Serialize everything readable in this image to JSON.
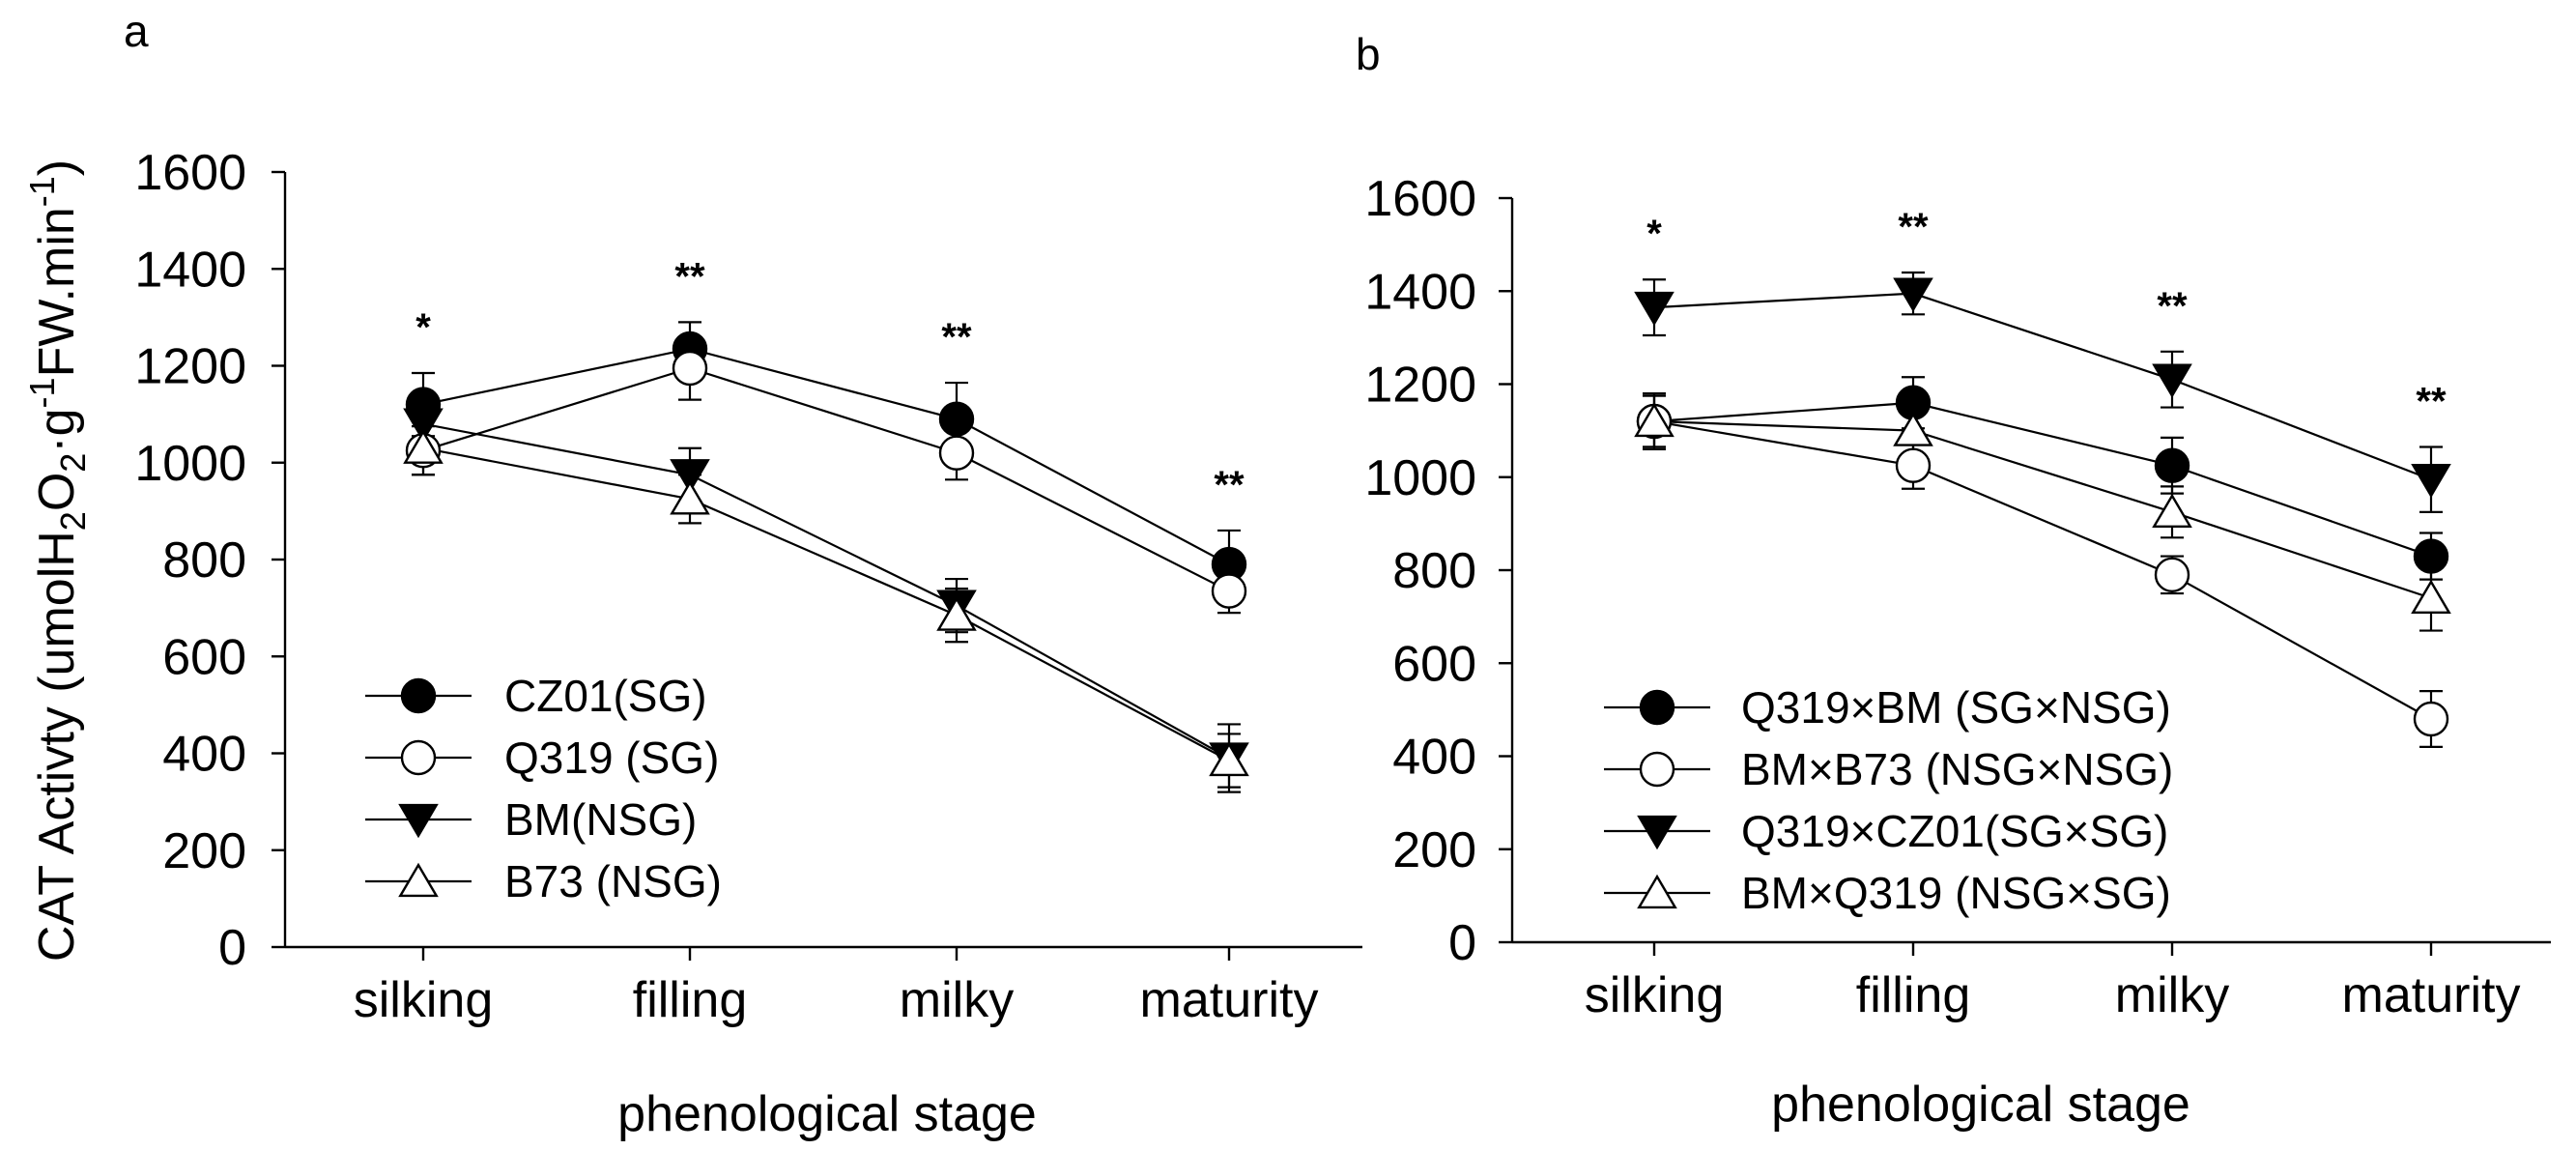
{
  "chart_data": [
    {
      "panel_label": "a",
      "type": "line",
      "categories": [
        "silking",
        "filling",
        "milky",
        "maturity"
      ],
      "xlabel": "phenological stage",
      "ylabel": {
        "prefix": "CAT Activty (umolH",
        "sub1": "2",
        "mid1": "O",
        "sub2": "2",
        "mid2": "·g",
        "sup1": "-1",
        "mid3": "FW.min",
        "sup2": "-1",
        "suffix": ")"
      },
      "ylim": [
        0,
        1600
      ],
      "yticks": [
        0,
        200,
        400,
        600,
        800,
        1000,
        1200,
        1400,
        1600
      ],
      "significance": [
        "*",
        "**",
        "**",
        "**"
      ],
      "series": [
        {
          "name": "CZ01(SG)",
          "marker": "circle-filled",
          "values": [
            1120,
            1235,
            1090,
            790
          ],
          "errors": [
            65,
            55,
            75,
            70
          ]
        },
        {
          "name": "Q319 (SG)",
          "marker": "circle-open",
          "values": [
            1025,
            1195,
            1020,
            735
          ],
          "errors": [
            50,
            65,
            55,
            45
          ]
        },
        {
          "name": "BM(NSG)",
          "marker": "triangle-down-filled",
          "values": [
            1080,
            975,
            705,
            390
          ],
          "errors": [
            60,
            55,
            55,
            70
          ]
        },
        {
          "name": "B73 (NSG)",
          "marker": "triangle-up-open",
          "values": [
            1030,
            925,
            685,
            385
          ],
          "errors": [
            55,
            50,
            55,
            55
          ]
        }
      ]
    },
    {
      "panel_label": "b",
      "type": "line",
      "categories": [
        "silking",
        "filling",
        "milky",
        "maturity"
      ],
      "xlabel": "phenological stage",
      "ylabel": "",
      "ylim": [
        0,
        1600
      ],
      "yticks": [
        0,
        200,
        400,
        600,
        800,
        1000,
        1200,
        1400,
        1600
      ],
      "significance": [
        "*",
        "**",
        "**",
        "**"
      ],
      "series": [
        {
          "name": "Q319×BM  (SG×NSG)",
          "marker": "circle-filled",
          "values": [
            1120,
            1160,
            1025,
            830
          ],
          "errors": [
            55,
            55,
            60,
            50
          ]
        },
        {
          "name": "BM×B73  (NSG×NSG)",
          "marker": "circle-open",
          "values": [
            1120,
            1025,
            790,
            480
          ],
          "errors": [
            55,
            50,
            40,
            60
          ]
        },
        {
          "name": "Q319×CZ01(SG×SG)",
          "marker": "triangle-down-filled",
          "values": [
            1365,
            1395,
            1210,
            995
          ],
          "errors": [
            60,
            45,
            60,
            70
          ]
        },
        {
          "name": "BM×Q319 (NSG×SG)",
          "marker": "triangle-up-open",
          "values": [
            1120,
            1100,
            925,
            740
          ],
          "errors": [
            60,
            55,
            55,
            70
          ]
        }
      ]
    }
  ]
}
